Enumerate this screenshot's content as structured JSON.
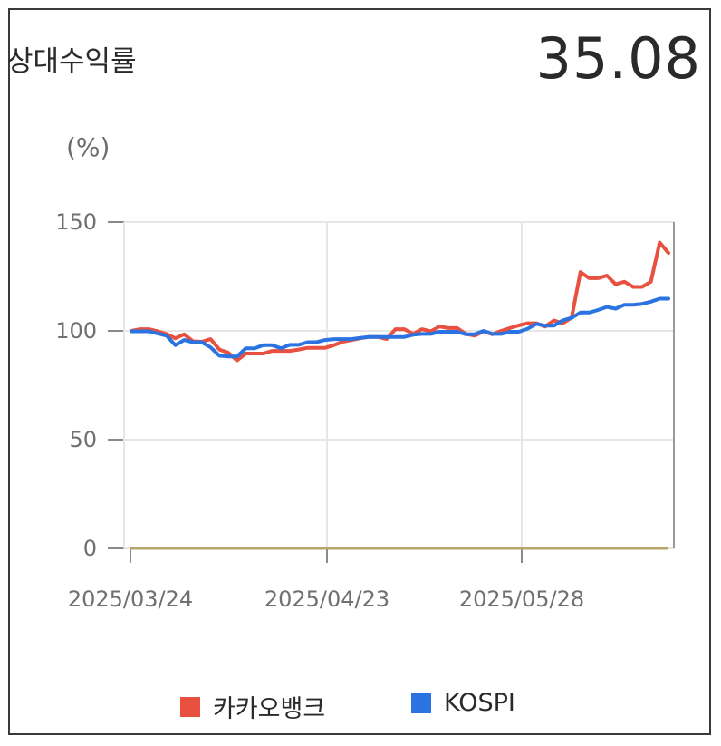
{
  "header": {
    "title": "상대수익률",
    "value": "35.08"
  },
  "chart_data": {
    "type": "line",
    "unit_label": "(%)",
    "y_ticks": [
      150,
      100,
      50,
      0
    ],
    "ylim": [
      0,
      150
    ],
    "x_ticks": [
      "2025/03/24",
      "2025/04/23",
      "2025/05/28"
    ],
    "grid": true,
    "legend_position": "bottom",
    "baseline": 0,
    "colors": {
      "kakaobank": "#e8513f",
      "kospi": "#2a73e0",
      "baseline": "#b8a46a",
      "grid": "#e6e6e6",
      "axis": "#8a8a8a"
    },
    "series": [
      {
        "name": "카카오뱅크",
        "values": [
          100,
          100.8,
          100.8,
          99.8,
          98.6,
          96.6,
          98.4,
          95.2,
          95,
          96.2,
          91.4,
          90,
          86.4,
          89.6,
          89.6,
          89.6,
          90.8,
          90.8,
          90.8,
          91.4,
          92.2,
          92.2,
          92.2,
          93.4,
          95,
          95.8,
          96.6,
          97.2,
          97.2,
          96.2,
          100.8,
          100.8,
          98.6,
          100.8,
          99.8,
          102,
          101.3,
          101.3,
          98.6,
          97.8,
          99.8,
          98.4,
          100,
          101.3,
          102.5,
          103.5,
          103.5,
          102,
          104.8,
          103.5,
          106,
          127,
          124.2,
          124.2,
          125.4,
          121.4,
          122.6,
          120.2,
          120.2,
          122.6,
          140.6,
          135.8
        ]
      },
      {
        "name": "KOSPI",
        "values": [
          99.8,
          99.8,
          99.8,
          98.8,
          97.8,
          93.4,
          95.8,
          94.8,
          94.8,
          92.4,
          88.6,
          88.2,
          88.2,
          92,
          92,
          93.4,
          93.4,
          92,
          93.6,
          93.6,
          94.8,
          94.8,
          95.8,
          96.2,
          96.2,
          96.2,
          96.8,
          97.2,
          97.2,
          97.2,
          97.2,
          97.2,
          98.2,
          98.6,
          98.6,
          99.6,
          99.6,
          99.6,
          98.4,
          98.4,
          100,
          98.6,
          98.6,
          99.6,
          99.6,
          101,
          103.2,
          102.4,
          102.4,
          104.8,
          106,
          108.4,
          108.4,
          109.6,
          111,
          110.2,
          112,
          112,
          112.4,
          113.4,
          114.8,
          114.8
        ]
      }
    ]
  }
}
